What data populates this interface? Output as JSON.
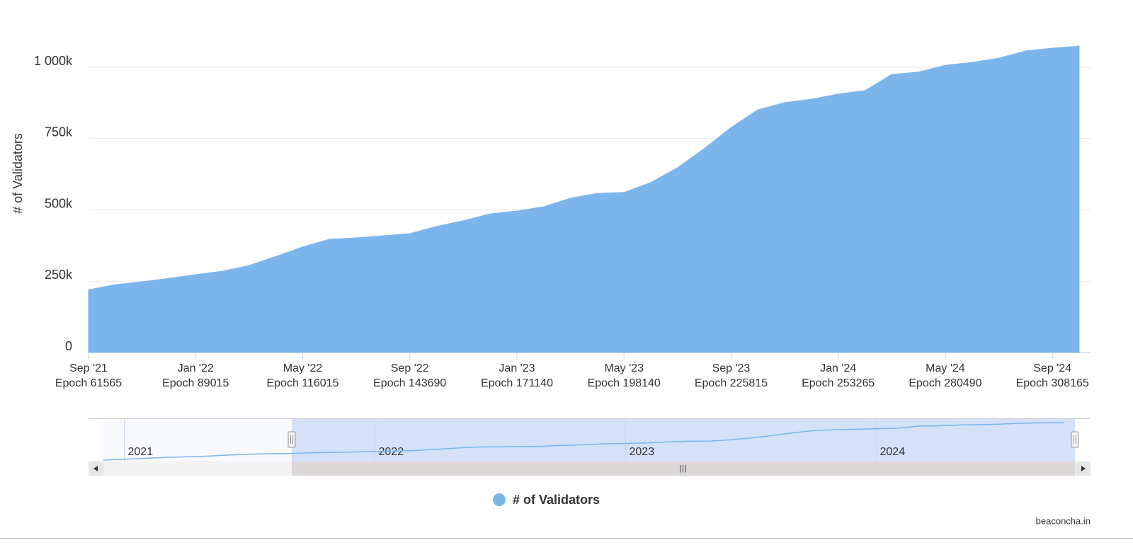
{
  "chart_data": {
    "type": "area",
    "ylabel": "# of Validators",
    "x": [
      "2021-09",
      "2021-10",
      "2021-11",
      "2021-12",
      "2022-01",
      "2022-02",
      "2022-03",
      "2022-04",
      "2022-05",
      "2022-06",
      "2022-07",
      "2022-08",
      "2022-09",
      "2022-10",
      "2022-11",
      "2022-12",
      "2023-01",
      "2023-02",
      "2023-03",
      "2023-04",
      "2023-05",
      "2023-06",
      "2023-07",
      "2023-08",
      "2023-09",
      "2023-10",
      "2023-11",
      "2023-12",
      "2024-01",
      "2024-02",
      "2024-03",
      "2024-04",
      "2024-05",
      "2024-06",
      "2024-07",
      "2024-08",
      "2024-09",
      "2024-10"
    ],
    "series": [
      {
        "name": "# of Validators",
        "color": "#7cb5ec",
        "values": [
          220000,
          238000,
          248000,
          260000,
          273000,
          285000,
          305000,
          337000,
          370000,
          397000,
          402000,
          409000,
          417000,
          442000,
          462000,
          486000,
          496000,
          511000,
          541000,
          558000,
          561000,
          596000,
          648000,
          715000,
          789000,
          851000,
          876000,
          888000,
          906000,
          918000,
          975000,
          983000,
          1007000,
          1017000,
          1032000,
          1057000,
          1067000,
          1074000
        ]
      }
    ],
    "xlim": [
      "2021-09",
      "2024-10"
    ],
    "ylim": [
      0,
      1100000
    ],
    "yticks": [
      0,
      {
        "value": 250000,
        "label": "250k"
      },
      {
        "value": 500000,
        "label": "500k"
      },
      {
        "value": 750000,
        "label": "750k"
      },
      {
        "value": 1000000,
        "label": "1 000k"
      }
    ],
    "xticks": [
      {
        "value": "2021-09",
        "label": "Sep '21",
        "epoch": "Epoch 61565"
      },
      {
        "value": "2022-01",
        "label": "Jan '22",
        "epoch": "Epoch 89015"
      },
      {
        "value": "2022-05",
        "label": "May '22",
        "epoch": "Epoch 116015"
      },
      {
        "value": "2022-09",
        "label": "Sep '22",
        "epoch": "Epoch 143690"
      },
      {
        "value": "2023-01",
        "label": "Jan '23",
        "epoch": "Epoch 171140"
      },
      {
        "value": "2023-05",
        "label": "May '23",
        "epoch": "Epoch 198140"
      },
      {
        "value": "2023-09",
        "label": "Sep '23",
        "epoch": "Epoch 225815"
      },
      {
        "value": "2024-01",
        "label": "Jan '24",
        "epoch": "Epoch 253265"
      },
      {
        "value": "2024-05",
        "label": "May '24",
        "epoch": "Epoch 280490"
      },
      {
        "value": "2024-09",
        "label": "Sep '24",
        "epoch": "Epoch 308165"
      }
    ],
    "grid": true,
    "navigator": {
      "xlim": [
        "2020-12",
        "2024-10"
      ],
      "x": [
        "2020-12",
        "2021-01",
        "2021-02",
        "2021-03",
        "2021-04",
        "2021-05",
        "2021-06",
        "2021-07",
        "2021-08"
      ],
      "values": [
        35000,
        60000,
        85000,
        110000,
        125000,
        145000,
        175000,
        200000,
        215000
      ],
      "labels": [
        {
          "value": "2021-01",
          "label": "2021"
        },
        {
          "value": "2022-01",
          "label": "2022"
        },
        {
          "value": "2023-01",
          "label": "2023"
        },
        {
          "value": "2024-01",
          "label": "2024"
        }
      ]
    },
    "credit": "beaconcha.in"
  }
}
